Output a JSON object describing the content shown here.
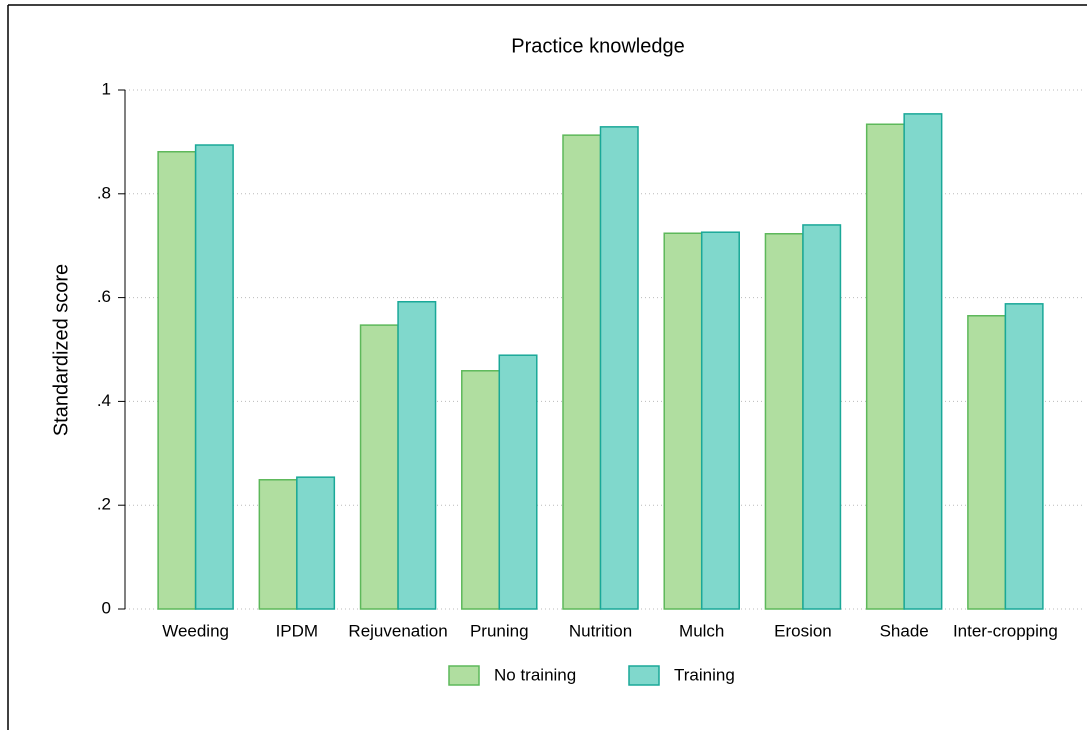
{
  "chart_data": {
    "type": "bar",
    "title": "Practice knowledge",
    "y_label": "Standardized score",
    "categories": [
      "Weeding",
      "IPDM",
      "Rejuvenation",
      "Pruning",
      "Nutrition",
      "Mulch",
      "Erosion",
      "Shade",
      "Inter-cropping"
    ],
    "series": [
      {
        "name": "No training",
        "color": "#b0dea0",
        "edge_color": "#5db85a",
        "values": [
          0.881,
          0.249,
          0.547,
          0.459,
          0.913,
          0.724,
          0.723,
          0.934,
          0.565
        ]
      },
      {
        "name": "Training",
        "color": "#80d8cc",
        "edge_color": "#1aa898",
        "values": [
          0.894,
          0.254,
          0.592,
          0.489,
          0.929,
          0.726,
          0.74,
          0.954,
          0.588
        ]
      }
    ],
    "ylim": [
      0,
      1
    ],
    "yticks": [
      0,
      {
        "value": 0.2,
        "label": ".2"
      },
      {
        "value": 0.4,
        "label": ".4"
      },
      {
        "value": 0.6,
        "label": ".6"
      },
      {
        "value": 0.8,
        "label": ".8"
      },
      1
    ],
    "grid": true,
    "legend": "bottom"
  }
}
